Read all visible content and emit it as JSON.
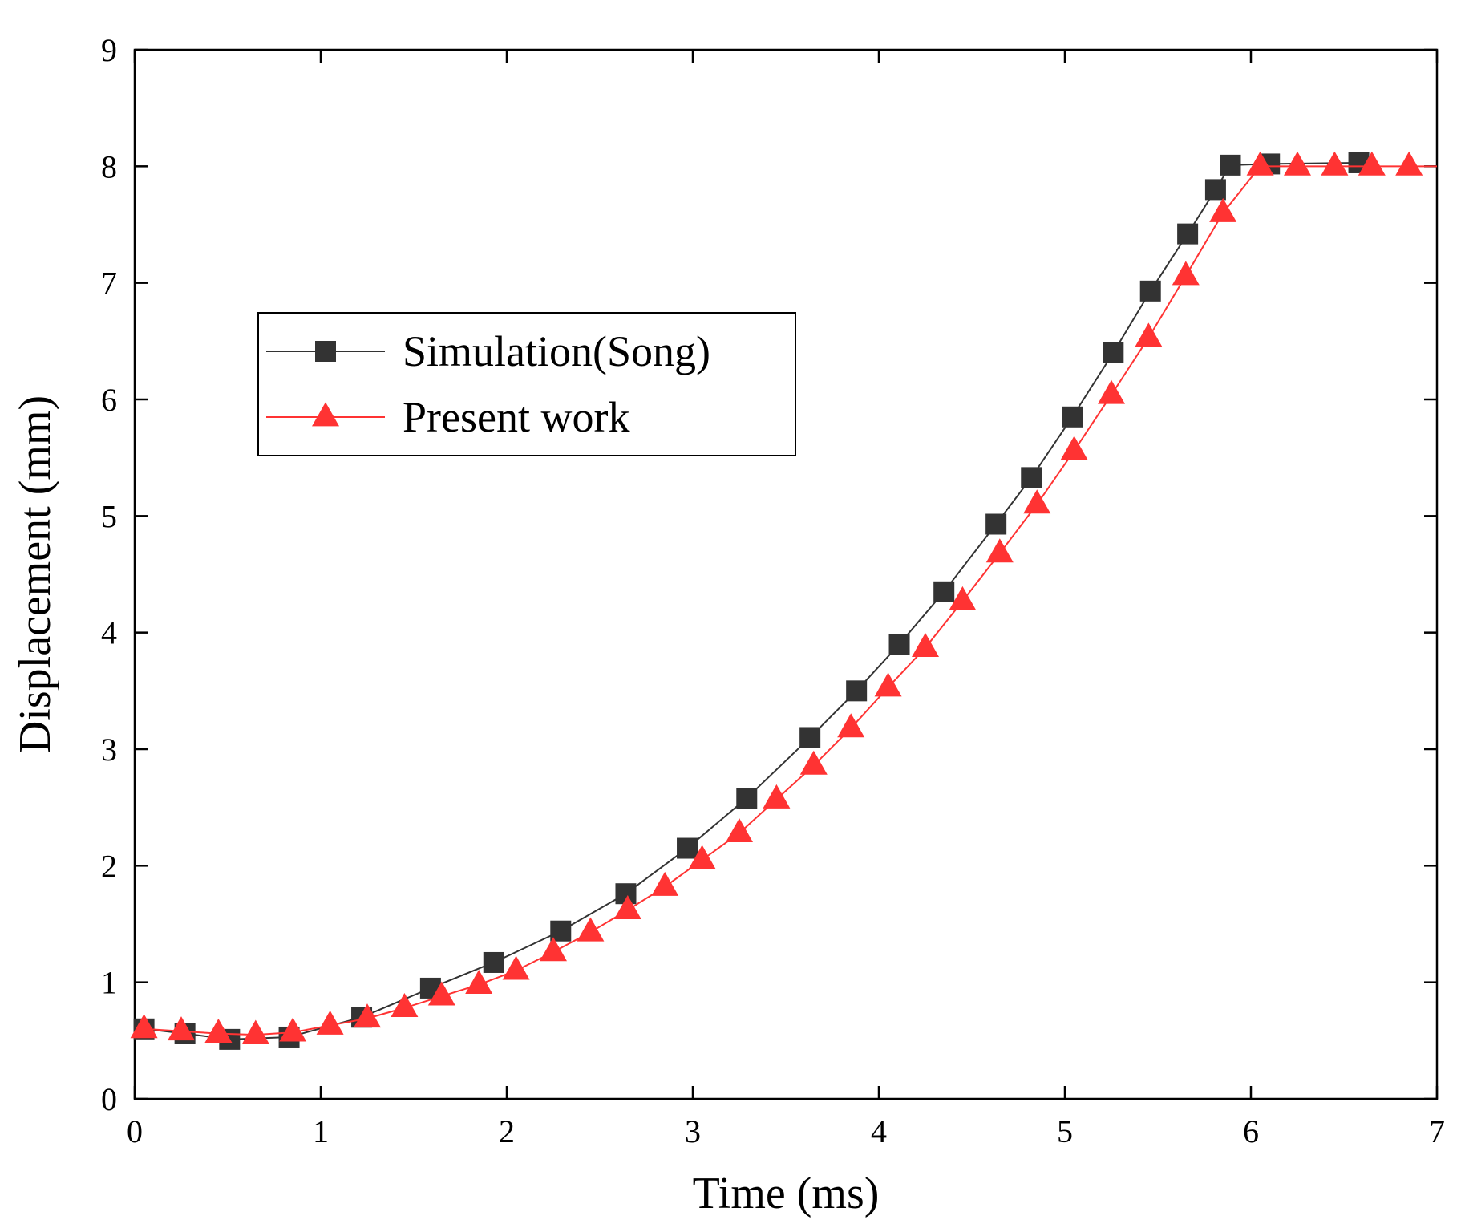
{
  "chart_data": {
    "type": "line",
    "title": "",
    "xlabel": "Time (ms)",
    "ylabel": "Displacement (mm)",
    "xlim": [
      0,
      7
    ],
    "ylim": [
      0,
      9
    ],
    "xticks": [
      "0",
      "1",
      "2",
      "3",
      "4",
      "5",
      "6",
      "7"
    ],
    "yticks": [
      "0",
      "1",
      "2",
      "3",
      "4",
      "5",
      "6",
      "7",
      "8",
      "9"
    ],
    "grid": false,
    "legend_position": "upper-left",
    "series": [
      {
        "name": "Simulation(Song)",
        "color": "#333333",
        "marker": "square",
        "x": [
          0.05,
          0.27,
          0.51,
          0.83,
          1.22,
          1.59,
          1.93,
          2.29,
          2.64,
          2.97,
          3.29,
          3.63,
          3.88,
          4.11,
          4.35,
          4.63,
          4.82,
          5.04,
          5.26,
          5.46,
          5.66,
          5.81,
          5.89,
          6.1,
          6.58
        ],
        "y": [
          0.6,
          0.56,
          0.51,
          0.53,
          0.7,
          0.95,
          1.17,
          1.44,
          1.76,
          2.15,
          2.58,
          3.1,
          3.5,
          3.9,
          4.35,
          4.93,
          5.33,
          5.85,
          6.4,
          6.93,
          7.42,
          7.8,
          8.01,
          8.02,
          8.03
        ]
      },
      {
        "name": "Present work",
        "color": "#ff3333",
        "marker": "triangle",
        "x": [
          0.05,
          0.25,
          0.45,
          0.65,
          0.85,
          1.05,
          1.25,
          1.45,
          1.65,
          1.85,
          2.05,
          2.25,
          2.45,
          2.65,
          2.85,
          3.05,
          3.25,
          3.45,
          3.65,
          3.85,
          4.05,
          4.25,
          4.45,
          4.65,
          4.85,
          5.05,
          5.25,
          5.45,
          5.65,
          5.85,
          6.05,
          6.25,
          6.45,
          6.65,
          6.85
        ],
        "y": [
          0.6,
          0.58,
          0.56,
          0.55,
          0.57,
          0.63,
          0.69,
          0.78,
          0.88,
          0.98,
          1.1,
          1.26,
          1.43,
          1.62,
          1.82,
          2.05,
          2.28,
          2.57,
          2.86,
          3.18,
          3.53,
          3.87,
          4.27,
          4.68,
          5.1,
          5.56,
          6.04,
          6.53,
          7.06,
          7.6,
          8.0,
          8.0,
          8.0,
          8.0,
          8.0
        ]
      }
    ]
  }
}
